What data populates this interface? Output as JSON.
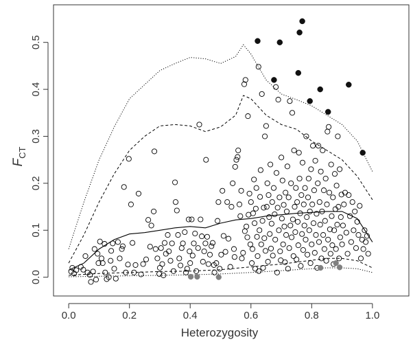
{
  "chart_data": {
    "type": "scatter",
    "xlabel": "Heterozygosity",
    "ylabel_main": "F",
    "ylabel_sub": "CT",
    "xlim": [
      -0.05,
      1.12
    ],
    "ylim": [
      -0.04,
      0.58
    ],
    "x_ticks": [
      0.0,
      0.2,
      0.4,
      0.6,
      0.8,
      1.0
    ],
    "x_tick_labels": [
      "0.0",
      "0.2",
      "0.4",
      "0.6",
      "0.8",
      "1.0"
    ],
    "y_ticks": [
      0.0,
      0.1,
      0.2,
      0.3,
      0.4,
      0.5
    ],
    "y_tick_labels": [
      "0.0",
      "0.1",
      "0.2",
      "0.3",
      "0.4",
      "0.5"
    ],
    "colors": {
      "open": "#000000",
      "outlier_high": "#111111",
      "outlier_low": "#808080",
      "line": "#000000"
    },
    "outliers_high": [
      {
        "x": 0.622,
        "y": 0.503
      },
      {
        "x": 0.676,
        "y": 0.42
      },
      {
        "x": 0.695,
        "y": 0.5
      },
      {
        "x": 0.756,
        "y": 0.435
      },
      {
        "x": 0.76,
        "y": 0.521
      },
      {
        "x": 0.769,
        "y": 0.545
      },
      {
        "x": 0.794,
        "y": 0.375
      },
      {
        "x": 0.828,
        "y": 0.4
      },
      {
        "x": 0.854,
        "y": 0.352
      },
      {
        "x": 0.922,
        "y": 0.41
      },
      {
        "x": 0.968,
        "y": 0.265
      }
    ],
    "outliers_low": [
      {
        "x": 0.402,
        "y": 0.001
      },
      {
        "x": 0.423,
        "y": 0.001
      },
      {
        "x": 0.494,
        "y": 0.0
      },
      {
        "x": 0.829,
        "y": 0.02
      },
      {
        "x": 0.88,
        "y": 0.03
      },
      {
        "x": 0.892,
        "y": 0.021
      }
    ],
    "points": [
      [
        0.008,
        0.012
      ],
      [
        0.012,
        0.02
      ],
      [
        0.018,
        0.008
      ],
      [
        0.025,
        0.015
      ],
      [
        0.04,
        0.022
      ],
      [
        0.048,
        0.016
      ],
      [
        0.055,
        0.045
      ],
      [
        0.062,
        0.01
      ],
      [
        0.07,
        0.005
      ],
      [
        0.073,
        -0.01
      ],
      [
        0.08,
        0.012
      ],
      [
        0.085,
        0.06
      ],
      [
        0.09,
        -0.005
      ],
      [
        0.095,
        0.05
      ],
      [
        0.098,
        0.03
      ],
      [
        0.103,
        0.076
      ],
      [
        0.108,
        0.04
      ],
      [
        0.112,
        0.03
      ],
      [
        0.118,
        0.071
      ],
      [
        0.12,
        0.01
      ],
      [
        0.125,
        -0.004
      ],
      [
        0.132,
        0.0
      ],
      [
        0.138,
        0.035
      ],
      [
        0.14,
        0.056
      ],
      [
        0.145,
        0.072
      ],
      [
        0.15,
        0.018
      ],
      [
        0.155,
        -0.003
      ],
      [
        0.162,
        0.075
      ],
      [
        0.168,
        0.04
      ],
      [
        0.175,
        0.06
      ],
      [
        0.178,
        0.066
      ],
      [
        0.182,
        0.192
      ],
      [
        0.188,
        0.01
      ],
      [
        0.195,
        0.027
      ],
      [
        0.198,
        0.252
      ],
      [
        0.205,
        0.155
      ],
      [
        0.21,
        0.073
      ],
      [
        0.215,
        0.01
      ],
      [
        0.22,
        0.026
      ],
      [
        0.23,
        0.178
      ],
      [
        0.238,
        0.006
      ],
      [
        0.245,
        0.028
      ],
      [
        0.255,
        0.038
      ],
      [
        0.262,
        0.122
      ],
      [
        0.268,
        0.065
      ],
      [
        0.272,
        0.11
      ],
      [
        0.28,
        0.14
      ],
      [
        0.282,
        0.268
      ],
      [
        0.286,
        0.06
      ],
      [
        0.292,
        0.04
      ],
      [
        0.298,
        0.007
      ],
      [
        0.3,
        0.02
      ],
      [
        0.304,
        0.062
      ],
      [
        0.308,
        0.028
      ],
      [
        0.312,
        0.004
      ],
      [
        0.316,
        0.073
      ],
      [
        0.32,
        0.05
      ],
      [
        0.326,
        0.09
      ],
      [
        0.33,
        0.055
      ],
      [
        0.335,
        0.035
      ],
      [
        0.34,
        0.072
      ],
      [
        0.345,
        0.013
      ],
      [
        0.35,
        0.202
      ],
      [
        0.352,
        0.16
      ],
      [
        0.356,
        0.142
      ],
      [
        0.36,
        0.09
      ],
      [
        0.364,
        0.04
      ],
      [
        0.368,
        0.025
      ],
      [
        0.372,
        0.062
      ],
      [
        0.376,
        0.072
      ],
      [
        0.382,
        0.096
      ],
      [
        0.386,
        0.01
      ],
      [
        0.39,
        0.018
      ],
      [
        0.395,
        0.123
      ],
      [
        0.398,
        0.055
      ],
      [
        0.4,
        0.03
      ],
      [
        0.405,
        0.123
      ],
      [
        0.408,
        0.046
      ],
      [
        0.412,
        0.072
      ],
      [
        0.416,
        0.093
      ],
      [
        0.42,
        0.013
      ],
      [
        0.426,
        0.062
      ],
      [
        0.43,
        0.325
      ],
      [
        0.434,
        0.123
      ],
      [
        0.438,
        0.087
      ],
      [
        0.442,
        0.033
      ],
      [
        0.446,
        0.055
      ],
      [
        0.45,
        0.072
      ],
      [
        0.452,
        0.25
      ],
      [
        0.456,
        0.086
      ],
      [
        0.46,
        0.028
      ],
      [
        0.465,
        0.048
      ],
      [
        0.47,
        0.066
      ],
      [
        0.474,
        0.073
      ],
      [
        0.478,
        0.026
      ],
      [
        0.48,
        0.01
      ],
      [
        0.486,
        0.03
      ],
      [
        0.49,
        0.12
      ],
      [
        0.493,
        0.16
      ],
      [
        0.497,
        0.018
      ],
      [
        0.502,
        0.048
      ],
      [
        0.506,
        0.184
      ],
      [
        0.51,
        0.088
      ],
      [
        0.516,
        0.054
      ],
      [
        0.522,
        0.16
      ],
      [
        0.526,
        0.082
      ],
      [
        0.532,
        0.022
      ],
      [
        0.536,
        0.15
      ],
      [
        0.54,
        0.2
      ],
      [
        0.544,
        0.06
      ],
      [
        0.546,
        0.043
      ],
      [
        0.548,
        0.235
      ],
      [
        0.552,
        0.25
      ],
      [
        0.556,
        0.256
      ],
      [
        0.558,
        0.27
      ],
      [
        0.562,
        0.155
      ],
      [
        0.565,
        0.13
      ],
      [
        0.568,
        0.184
      ],
      [
        0.57,
        0.04
      ],
      [
        0.574,
        0.052
      ],
      [
        0.578,
        0.411
      ],
      [
        0.58,
        0.098
      ],
      [
        0.582,
        0.42
      ],
      [
        0.585,
        0.108
      ],
      [
        0.588,
        0.085
      ],
      [
        0.59,
        0.343
      ],
      [
        0.592,
        0.133
      ],
      [
        0.595,
        0.178
      ],
      [
        0.598,
        0.07
      ],
      [
        0.6,
        0.16
      ],
      [
        0.603,
        0.03
      ],
      [
        0.605,
        0.06
      ],
      [
        0.607,
        0.136
      ],
      [
        0.61,
        0.208
      ],
      [
        0.612,
        0.115
      ],
      [
        0.614,
        0.018
      ],
      [
        0.616,
        0.146
      ],
      [
        0.618,
        0.19
      ],
      [
        0.62,
        0.086
      ],
      [
        0.622,
        0.045
      ],
      [
        0.625,
        0.448
      ],
      [
        0.626,
        0.013
      ],
      [
        0.628,
        0.1
      ],
      [
        0.63,
        0.171
      ],
      [
        0.632,
        0.228
      ],
      [
        0.634,
        0.07
      ],
      [
        0.636,
        0.39
      ],
      [
        0.638,
        0.12
      ],
      [
        0.64,
        0.02
      ],
      [
        0.642,
        0.148
      ],
      [
        0.644,
        0.083
      ],
      [
        0.646,
        0.3
      ],
      [
        0.648,
        0.056
      ],
      [
        0.65,
        0.322
      ],
      [
        0.652,
        0.15
      ],
      [
        0.654,
        0.2
      ],
      [
        0.656,
        0.033
      ],
      [
        0.658,
        0.175
      ],
      [
        0.66,
        0.128
      ],
      [
        0.662,
        0.092
      ],
      [
        0.664,
        0.24
      ],
      [
        0.666,
        0.061
      ],
      [
        0.668,
        0.114
      ],
      [
        0.67,
        0.16
      ],
      [
        0.672,
        0.046
      ],
      [
        0.675,
        0.19
      ],
      [
        0.678,
        0.134
      ],
      [
        0.68,
        0.08
      ],
      [
        0.682,
        0.405
      ],
      [
        0.684,
        0.222
      ],
      [
        0.686,
        0.01
      ],
      [
        0.688,
        0.148
      ],
      [
        0.69,
        0.378
      ],
      [
        0.692,
        0.1
      ],
      [
        0.694,
        0.17
      ],
      [
        0.696,
        0.055
      ],
      [
        0.698,
        0.036
      ],
      [
        0.7,
        0.255
      ],
      [
        0.702,
        0.125
      ],
      [
        0.704,
        0.206
      ],
      [
        0.706,
        0.07
      ],
      [
        0.708,
        0.154
      ],
      [
        0.71,
        0.108
      ],
      [
        0.712,
        0.032
      ],
      [
        0.714,
        0.18
      ],
      [
        0.716,
        0.09
      ],
      [
        0.718,
        0.14
      ],
      [
        0.72,
        0.236
      ],
      [
        0.722,
        0.018
      ],
      [
        0.724,
        0.17
      ],
      [
        0.726,
        0.062
      ],
      [
        0.728,
        0.375
      ],
      [
        0.73,
        0.11
      ],
      [
        0.732,
        0.2
      ],
      [
        0.734,
        0.085
      ],
      [
        0.736,
        0.35
      ],
      [
        0.738,
        0.123
      ],
      [
        0.74,
        0.045
      ],
      [
        0.742,
        0.27
      ],
      [
        0.744,
        0.15
      ],
      [
        0.746,
        0.096
      ],
      [
        0.748,
        0.19
      ],
      [
        0.75,
        0.038
      ],
      [
        0.752,
        0.16
      ],
      [
        0.754,
        0.118
      ],
      [
        0.756,
        0.068
      ],
      [
        0.758,
        0.265
      ],
      [
        0.76,
        0.21
      ],
      [
        0.762,
        0.136
      ],
      [
        0.764,
        0.024
      ],
      [
        0.766,
        0.175
      ],
      [
        0.768,
        0.092
      ],
      [
        0.77,
        0.244
      ],
      [
        0.772,
        0.058
      ],
      [
        0.774,
        0.155
      ],
      [
        0.776,
        0.11
      ],
      [
        0.778,
        0.19
      ],
      [
        0.78,
        0.08
      ],
      [
        0.782,
        0.3
      ],
      [
        0.784,
        0.128
      ],
      [
        0.786,
        0.048
      ],
      [
        0.788,
        0.17
      ],
      [
        0.79,
        0.21
      ],
      [
        0.792,
        0.1
      ],
      [
        0.794,
        0.14
      ],
      [
        0.796,
        0.03
      ],
      [
        0.798,
        0.23
      ],
      [
        0.8,
        0.07
      ],
      [
        0.802,
        0.155
      ],
      [
        0.804,
        0.28
      ],
      [
        0.806,
        0.115
      ],
      [
        0.808,
        0.185
      ],
      [
        0.81,
        0.052
      ],
      [
        0.812,
        0.248
      ],
      [
        0.814,
        0.09
      ],
      [
        0.816,
        0.135
      ],
      [
        0.818,
        0.02
      ],
      [
        0.82,
        0.2
      ],
      [
        0.822,
        0.28
      ],
      [
        0.824,
        0.075
      ],
      [
        0.826,
        0.16
      ],
      [
        0.828,
        0.112
      ],
      [
        0.83,
        0.225
      ],
      [
        0.832,
        0.04
      ],
      [
        0.834,
        0.14
      ],
      [
        0.836,
        0.27
      ],
      [
        0.838,
        0.09
      ],
      [
        0.84,
        0.185
      ],
      [
        0.842,
        0.06
      ],
      [
        0.844,
        0.12
      ],
      [
        0.846,
        0.21
      ],
      [
        0.848,
        0.035
      ],
      [
        0.85,
        0.155
      ],
      [
        0.852,
        0.31
      ],
      [
        0.854,
        0.08
      ],
      [
        0.856,
        0.32
      ],
      [
        0.858,
        0.18
      ],
      [
        0.86,
        0.102
      ],
      [
        0.862,
        0.05
      ],
      [
        0.864,
        0.24
      ],
      [
        0.866,
        0.13
      ],
      [
        0.868,
        0.068
      ],
      [
        0.87,
        0.17
      ],
      [
        0.872,
        0.028
      ],
      [
        0.874,
        0.1
      ],
      [
        0.876,
        0.22
      ],
      [
        0.878,
        0.145
      ],
      [
        0.88,
        0.06
      ],
      [
        0.882,
        0.195
      ],
      [
        0.884,
        0.112
      ],
      [
        0.886,
        0.3
      ],
      [
        0.888,
        0.15
      ],
      [
        0.89,
        0.04
      ],
      [
        0.892,
        0.23
      ],
      [
        0.894,
        0.085
      ],
      [
        0.896,
        0.128
      ],
      [
        0.898,
        0.176
      ],
      [
        0.9,
        0.07
      ],
      [
        0.903,
        0.11
      ],
      [
        0.906,
        0.155
      ],
      [
        0.91,
        0.18
      ],
      [
        0.914,
        0.095
      ],
      [
        0.918,
        0.05
      ],
      [
        0.922,
        0.175
      ],
      [
        0.926,
        0.13
      ],
      [
        0.93,
        0.075
      ],
      [
        0.934,
        0.16
      ],
      [
        0.938,
        0.1
      ],
      [
        0.942,
        0.14
      ],
      [
        0.946,
        0.062
      ],
      [
        0.95,
        0.118
      ],
      [
        0.954,
        0.09
      ],
      [
        0.958,
        0.152
      ],
      [
        0.962,
        0.04
      ],
      [
        0.966,
        0.08
      ],
      [
        0.97,
        0.06
      ],
      [
        0.974,
        0.1
      ],
      [
        0.978,
        0.075
      ],
      [
        0.982,
        0.088
      ],
      [
        0.986,
        0.05
      ]
    ],
    "median_line": [
      [
        0,
        0.015
      ],
      [
        0.05,
        0.03
      ],
      [
        0.1,
        0.06
      ],
      [
        0.15,
        0.08
      ],
      [
        0.2,
        0.092
      ],
      [
        0.25,
        0.095
      ],
      [
        0.3,
        0.1
      ],
      [
        0.35,
        0.105
      ],
      [
        0.4,
        0.108
      ],
      [
        0.45,
        0.105
      ],
      [
        0.5,
        0.115
      ],
      [
        0.55,
        0.122
      ],
      [
        0.6,
        0.125
      ],
      [
        0.65,
        0.13
      ],
      [
        0.7,
        0.133
      ],
      [
        0.75,
        0.136
      ],
      [
        0.8,
        0.138
      ],
      [
        0.85,
        0.14
      ],
      [
        0.9,
        0.14
      ],
      [
        0.95,
        0.125
      ],
      [
        1.0,
        0.075
      ]
    ],
    "upper_dashed": [
      [
        0,
        0.03
      ],
      [
        0.05,
        0.09
      ],
      [
        0.1,
        0.16
      ],
      [
        0.15,
        0.22
      ],
      [
        0.2,
        0.27
      ],
      [
        0.25,
        0.3
      ],
      [
        0.3,
        0.322
      ],
      [
        0.35,
        0.325
      ],
      [
        0.4,
        0.322
      ],
      [
        0.45,
        0.31
      ],
      [
        0.5,
        0.32
      ],
      [
        0.55,
        0.345
      ],
      [
        0.575,
        0.387
      ],
      [
        0.6,
        0.38
      ],
      [
        0.65,
        0.345
      ],
      [
        0.7,
        0.325
      ],
      [
        0.75,
        0.315
      ],
      [
        0.8,
        0.29
      ],
      [
        0.85,
        0.27
      ],
      [
        0.9,
        0.25
      ],
      [
        0.95,
        0.215
      ],
      [
        1.0,
        0.165
      ]
    ],
    "upper_dotted": [
      [
        0,
        0.06
      ],
      [
        0.05,
        0.16
      ],
      [
        0.1,
        0.25
      ],
      [
        0.15,
        0.32
      ],
      [
        0.2,
        0.38
      ],
      [
        0.25,
        0.41
      ],
      [
        0.3,
        0.44
      ],
      [
        0.35,
        0.455
      ],
      [
        0.4,
        0.468
      ],
      [
        0.45,
        0.465
      ],
      [
        0.5,
        0.455
      ],
      [
        0.55,
        0.47
      ],
      [
        0.575,
        0.495
      ],
      [
        0.6,
        0.475
      ],
      [
        0.65,
        0.42
      ],
      [
        0.7,
        0.39
      ],
      [
        0.75,
        0.378
      ],
      [
        0.8,
        0.365
      ],
      [
        0.85,
        0.345
      ],
      [
        0.9,
        0.325
      ],
      [
        0.95,
        0.29
      ],
      [
        1.0,
        0.225
      ]
    ],
    "lower_dashed": [
      [
        0,
        0.004
      ],
      [
        0.1,
        0.008
      ],
      [
        0.2,
        0.01
      ],
      [
        0.3,
        0.012
      ],
      [
        0.4,
        0.013
      ],
      [
        0.5,
        0.016
      ],
      [
        0.6,
        0.022
      ],
      [
        0.7,
        0.028
      ],
      [
        0.8,
        0.036
      ],
      [
        0.85,
        0.04
      ],
      [
        0.9,
        0.04
      ],
      [
        0.95,
        0.035
      ],
      [
        1.0,
        0.02
      ]
    ],
    "lower_dotted": [
      [
        0,
        0.001
      ],
      [
        0.1,
        0.002
      ],
      [
        0.2,
        0.003
      ],
      [
        0.3,
        0.004
      ],
      [
        0.4,
        0.005
      ],
      [
        0.5,
        0.007
      ],
      [
        0.6,
        0.01
      ],
      [
        0.7,
        0.014
      ],
      [
        0.8,
        0.018
      ],
      [
        0.85,
        0.02
      ],
      [
        0.9,
        0.02
      ],
      [
        0.95,
        0.018
      ],
      [
        1.0,
        0.01
      ]
    ]
  }
}
